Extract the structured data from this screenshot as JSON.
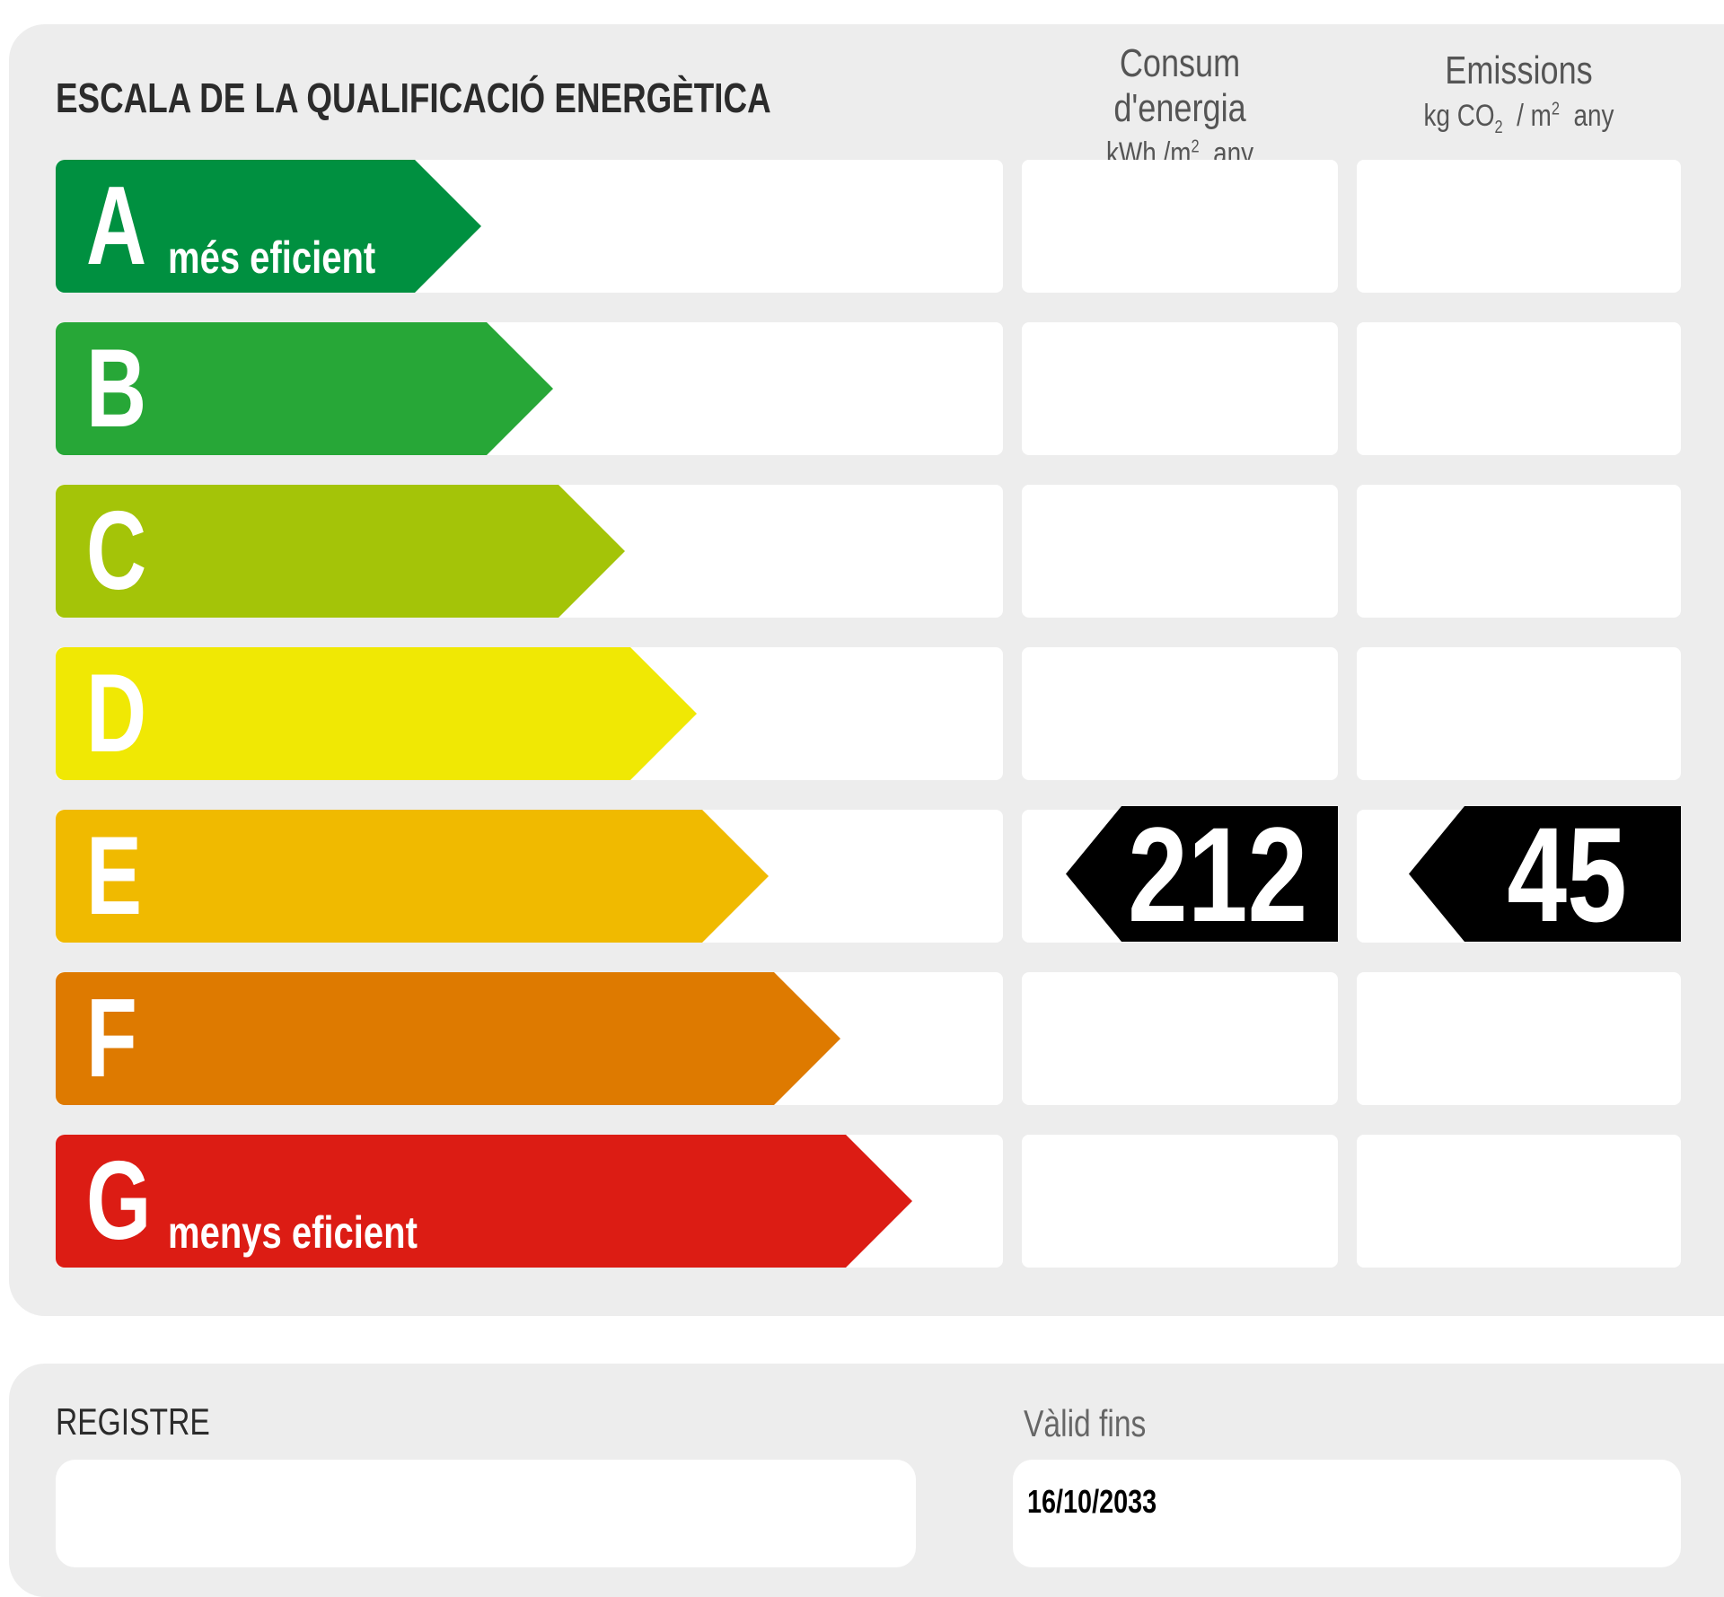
{
  "scale": {
    "title": "ESCALA DE LA QUALIFICACIÓ ENERGÈTICA",
    "columns": [
      {
        "title": "Consum d'energia",
        "unit": "kWh /m",
        "unit_sup": "2",
        "unit_tail": "  any"
      },
      {
        "title": "Emissions",
        "unit": "kg CO",
        "unit_sub": "2",
        "unit_mid": "  / m",
        "unit_sup": "2",
        "unit_tail": "  any"
      }
    ],
    "classes": [
      {
        "letter": "A",
        "label": "més eficient",
        "color": "#009040"
      },
      {
        "letter": "B",
        "label": "",
        "color": "#27a737"
      },
      {
        "letter": "C",
        "label": "",
        "color": "#a4c408"
      },
      {
        "letter": "D",
        "label": "",
        "color": "#f0e804"
      },
      {
        "letter": "E",
        "label": "",
        "color": "#f0ba00"
      },
      {
        "letter": "F",
        "label": "",
        "color": "#de7a00"
      },
      {
        "letter": "G",
        "label": "menys eficient",
        "color": "#dc1c14"
      }
    ],
    "rating": {
      "class": "E",
      "energy_consumption": "212",
      "emissions": "45"
    }
  },
  "registry": {
    "register_label": "REGISTRE",
    "register_value": "",
    "valid_until_label": "Vàlid fins",
    "valid_until_value": "16/10/2033"
  }
}
